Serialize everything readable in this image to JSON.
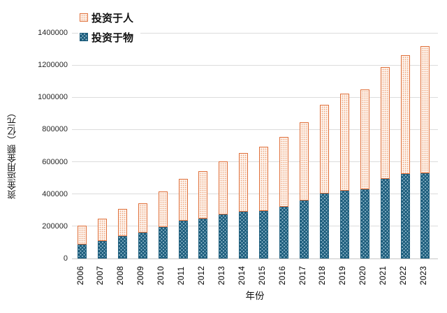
{
  "chart_data": {
    "type": "bar",
    "stacked": true,
    "title": "",
    "xlabel": "年份",
    "ylabel": "资金运用金额（亿元）",
    "categories": [
      "2006",
      "2007",
      "2008",
      "2009",
      "2010",
      "2011",
      "2012",
      "2013",
      "2014",
      "2015",
      "2016",
      "2017",
      "2018",
      "2019",
      "2020",
      "2021",
      "2022",
      "2023"
    ],
    "series": [
      {
        "name": "投资于物",
        "stack_position": "bottom",
        "color": "#1E5E7D",
        "pattern": "light-blue dots on dark teal",
        "values": [
          87000,
          110000,
          139000,
          160000,
          195000,
          234000,
          245000,
          275000,
          290000,
          296000,
          320000,
          360000,
          404000,
          421000,
          428000,
          495000,
          524000,
          530000
        ]
      },
      {
        "name": "投资于人",
        "stack_position": "top",
        "color": "#E0713C",
        "pattern": "orange dots on near-white, orange outline",
        "values": [
          118000,
          139000,
          168000,
          183000,
          221000,
          259000,
          298000,
          328000,
          366000,
          399000,
          433000,
          486000,
          549000,
          604000,
          621000,
          692000,
          738000,
          786000
        ]
      }
    ],
    "stack_totals": [
      205000,
      249000,
      307000,
      343000,
      416000,
      493000,
      543000,
      603000,
      656000,
      695000,
      753000,
      846000,
      953000,
      1025000,
      1049000,
      1187000,
      1262000,
      1316000
    ],
    "legend": {
      "position": "top-left-inside",
      "items": [
        {
          "label": "投资于人",
          "swatch": "orange-dotted"
        },
        {
          "label": "投资于物",
          "swatch": "teal-dotted"
        }
      ]
    },
    "ylim": [
      0,
      1400000
    ],
    "yticks": [
      0,
      200000,
      400000,
      600000,
      800000,
      1000000,
      1200000,
      1400000
    ],
    "grid": "horizontal",
    "colors": {
      "teal": "#1E5E7D",
      "teal_dot": "#9CC2D3",
      "orange": "#E0713C",
      "orange_fill": "#FDF3EC",
      "orange_dot": "#EC9C6F",
      "gridline": "#DCDCDC",
      "text": "#1A1A1A",
      "background": "#FFFFFF"
    }
  }
}
